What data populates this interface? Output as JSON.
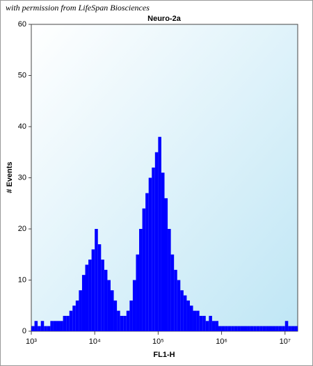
{
  "chart_data": {
    "type": "histogram",
    "watermark": "with permission from LifeSpan Biosciences",
    "title": "Neuro-2a",
    "x_label": "FL1-H",
    "y_label": "# Events",
    "color": "#0000ff",
    "x_scale": "log",
    "bins": [
      1000,
      1122,
      1259,
      1413,
      1585,
      1778,
      1995,
      2239,
      2512,
      2818,
      3162,
      3548,
      3981,
      4467,
      5012,
      5623,
      6310,
      7079,
      7943,
      8913,
      10000,
      11220,
      12589,
      14125,
      15849,
      17783,
      19953,
      22387,
      25119,
      28184,
      31623,
      35481,
      39811,
      44668,
      50119,
      56234,
      63096,
      70795,
      79433,
      89125,
      100000,
      112202,
      125893,
      141254,
      158489,
      177828,
      199526,
      223872,
      251189,
      281838,
      316228,
      354813,
      398107,
      446684,
      501187,
      562341,
      630957,
      707946,
      794328,
      891251,
      1000000,
      1122018,
      1258925,
      1412538,
      1584893,
      1778279,
      1995262,
      2238721,
      2511886,
      2818383,
      3162278,
      3548134,
      3981072,
      4466836,
      5011872,
      5623413,
      6309573,
      7079458,
      7943282,
      8912509,
      10000000,
      11220185,
      12589254,
      14125375,
      15848932
    ],
    "counts": [
      1,
      2,
      1,
      2,
      1,
      1,
      2,
      2,
      2,
      2,
      3,
      3,
      4,
      5,
      6,
      8,
      11,
      13,
      14,
      16,
      20,
      17,
      14,
      12,
      10,
      8,
      6,
      4,
      3,
      3,
      4,
      6,
      10,
      15,
      20,
      24,
      27,
      30,
      32,
      35,
      38,
      31,
      26,
      20,
      15,
      12,
      10,
      8,
      7,
      6,
      5,
      4,
      4,
      3,
      3,
      2,
      3,
      2,
      2,
      1,
      1,
      1,
      1,
      1,
      1,
      1,
      1,
      1,
      1,
      1,
      1,
      1,
      1,
      1,
      1,
      1,
      1,
      1,
      1,
      1,
      2,
      1,
      1,
      1
    ],
    "xlim": [
      1000,
      15848932
    ],
    "xticks": [
      {
        "value": 1000,
        "label": "10³"
      },
      {
        "value": 10000,
        "label": "10⁴"
      },
      {
        "value": 100000,
        "label": "10⁵"
      },
      {
        "value": 1000000,
        "label": "10⁶"
      },
      {
        "value": 10000000,
        "label": "10⁷"
      }
    ],
    "ylim": [
      0,
      60
    ],
    "yticks": [
      0,
      10,
      20,
      30,
      40,
      50,
      60
    ]
  }
}
